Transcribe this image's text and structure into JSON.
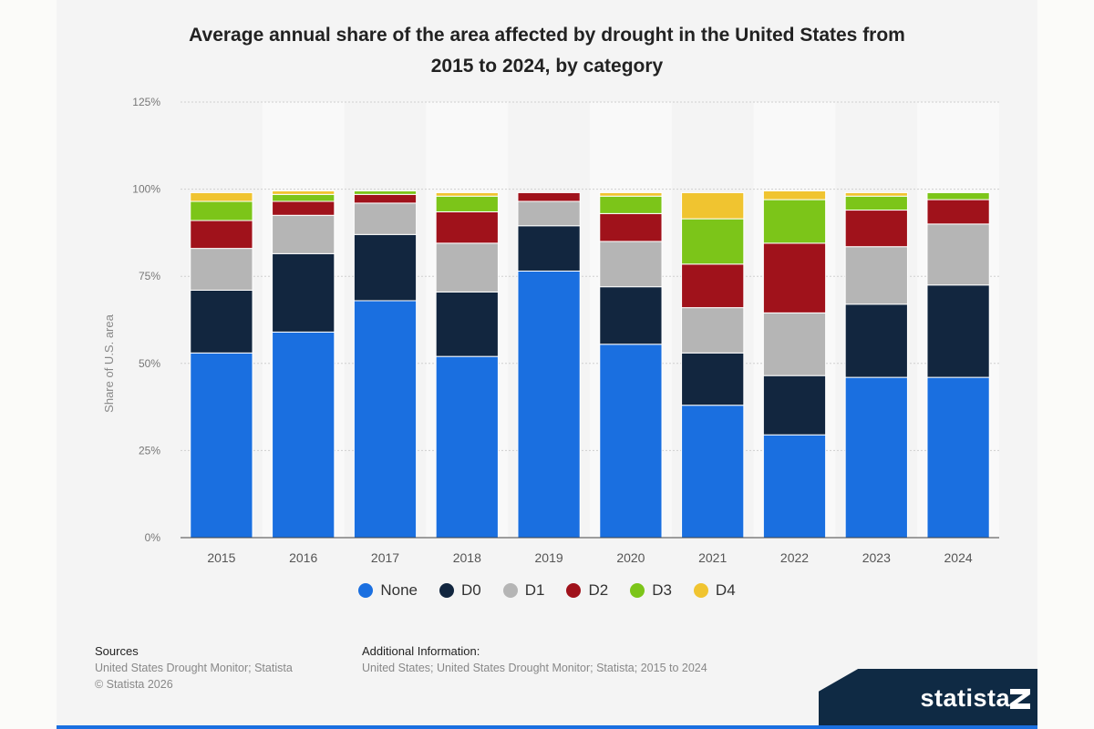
{
  "title_line1": "Average annual share of the area affected by drought in the United States from",
  "title_line2": "2015 to 2024, by category",
  "sources_label": "Sources",
  "sources_text": "United States Drought Monitor; Statista",
  "copyright": "© Statista 2026",
  "additional_label": "Additional Information:",
  "additional_text": "United States; United States Drought Monitor; Statista; 2015 to 2024",
  "brand": "statista",
  "chart_data": {
    "type": "bar",
    "stacked": true,
    "categories": [
      "2015",
      "2016",
      "2017",
      "2018",
      "2019",
      "2020",
      "2021",
      "2022",
      "2023",
      "2024"
    ],
    "ylabel": "Share of U.S. area",
    "ylim": [
      0,
      125
    ],
    "yticks": [
      0,
      25,
      50,
      75,
      100,
      125
    ],
    "ytick_labels": [
      "0%",
      "25%",
      "50%",
      "75%",
      "100%",
      "125%"
    ],
    "grid": true,
    "legend_position": "bottom",
    "series": [
      {
        "name": "None",
        "color": "#1a6fe0",
        "values": [
          53,
          59,
          68,
          52,
          76.5,
          55.5,
          38,
          29.5,
          46,
          46
        ]
      },
      {
        "name": "D0",
        "color": "#12263f",
        "values": [
          18,
          22.5,
          19,
          18.5,
          13,
          16.5,
          15,
          17,
          21,
          26.5
        ]
      },
      {
        "name": "D1",
        "color": "#b5b5b5",
        "values": [
          12,
          11,
          9,
          14,
          7,
          13,
          13,
          18,
          16.5,
          17.5
        ]
      },
      {
        "name": "D2",
        "color": "#a0121b",
        "values": [
          8,
          4,
          2.5,
          9,
          2.5,
          8,
          12.5,
          20,
          10.5,
          7
        ]
      },
      {
        "name": "D3",
        "color": "#7cc519",
        "values": [
          5.5,
          2,
          1,
          4.5,
          0,
          5,
          13,
          12.5,
          4,
          2
        ]
      },
      {
        "name": "D4",
        "color": "#f0c430",
        "values": [
          2.5,
          1,
          0,
          1,
          0,
          1,
          7.5,
          2.5,
          1,
          0
        ]
      }
    ]
  }
}
